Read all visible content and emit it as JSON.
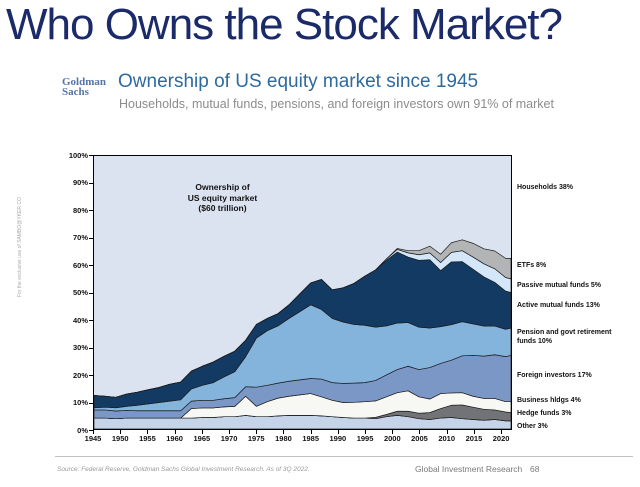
{
  "page": {
    "title": "Who Owns the Stock Market?",
    "watermark": "For the exclusive use of SAMBO@YKER.CO",
    "source_note": "Source: Federal Reserve, Goldman Sachs Global Investment Research. As of 3Q 2022.",
    "footer_right": "Global Investment Research",
    "page_number": "68",
    "title_color": "#1b2a68",
    "heading_color": "#2e6a9e"
  },
  "header": {
    "logo_line1": "Goldman",
    "logo_line2": "Sachs",
    "heading": "Ownership of US equity market since 1945",
    "subheading": "Households, mutual funds, pensions, and foreign investors own 91% of market"
  },
  "chart_data": {
    "type": "area",
    "stacked": true,
    "title": "Ownership of US equity market ($60 trillion)",
    "annotation_lines": [
      "Ownership of",
      "US equity market",
      "($60 trillion)"
    ],
    "plot_bg": "#dce3f0",
    "ylim": [
      0,
      100
    ],
    "x_range": [
      1945,
      2022
    ],
    "y_ticks": [
      "0%",
      "10%",
      "20%",
      "30%",
      "40%",
      "50%",
      "60%",
      "70%",
      "80%",
      "90%",
      "100%"
    ],
    "x_ticks": [
      1945,
      1950,
      1955,
      1960,
      1965,
      1970,
      1975,
      1980,
      1985,
      1990,
      1995,
      2000,
      2005,
      2010,
      2015,
      2020
    ],
    "x": [
      1945,
      1947,
      1949,
      1951,
      1953,
      1955,
      1957,
      1959,
      1961,
      1963,
      1965,
      1967,
      1969,
      1971,
      1973,
      1975,
      1977,
      1979,
      1981,
      1983,
      1985,
      1987,
      1989,
      1991,
      1993,
      1995,
      1997,
      1999,
      2001,
      2003,
      2005,
      2007,
      2009,
      2011,
      2013,
      2015,
      2017,
      2019,
      2021,
      2022
    ],
    "series": [
      {
        "name": "Other",
        "label": "Other 3%",
        "color": "#c6d4ea",
        "values": [
          4,
          4,
          3.8,
          4,
          4,
          4,
          4,
          4,
          4,
          4,
          4.2,
          4.2,
          4.5,
          4.5,
          5,
          4.5,
          4.5,
          4.8,
          5,
          5,
          5,
          4.8,
          4.5,
          4.2,
          4,
          4,
          3.8,
          4.5,
          5,
          4.5,
          3.8,
          3.5,
          4,
          4.2,
          3.8,
          3.5,
          3.2,
          3.5,
          3,
          3
        ]
      },
      {
        "name": "Hedge funds",
        "label": "Hedge funds 3%",
        "color": "#717376",
        "values": [
          0,
          0,
          0,
          0,
          0,
          0,
          0,
          0,
          0,
          0,
          0,
          0,
          0,
          0,
          0,
          0,
          0,
          0,
          0,
          0,
          0,
          0,
          0,
          0,
          0,
          0,
          0.5,
          0.8,
          1.5,
          2,
          2,
          2.5,
          3.5,
          4.5,
          5,
          4.5,
          4,
          3.5,
          3.2,
          3
        ]
      },
      {
        "name": "Business holdings",
        "label": "Business hldgs 4%",
        "color": "#f7f7f4",
        "values": [
          0,
          0,
          0,
          0,
          0,
          0,
          0,
          0,
          0,
          3.5,
          3.5,
          3.5,
          3.6,
          3.8,
          7,
          3.8,
          5.5,
          6.5,
          7,
          7.5,
          8,
          7,
          6,
          5.5,
          5.8,
          6,
          6,
          6.5,
          6.8,
          7.5,
          6,
          5,
          5.5,
          4.5,
          4.5,
          4,
          4,
          4.2,
          3.8,
          4
        ]
      },
      {
        "name": "Foreign investors",
        "label": "Foreign investors 17%",
        "color": "#7b97c5",
        "values": [
          3,
          3,
          2.8,
          2.8,
          2.7,
          2.7,
          2.7,
          2.7,
          2.7,
          2.7,
          2.8,
          2.8,
          3,
          3.2,
          3.5,
          7,
          6,
          5.5,
          5.5,
          5.5,
          5.5,
          6.5,
          6.5,
          7,
          7,
          7,
          7.5,
          8,
          8.5,
          9,
          10,
          11.5,
          11,
          12,
          13.5,
          15,
          15.5,
          16,
          16.5,
          17
        ]
      },
      {
        "name": "Pension and govt retirement funds",
        "label": "Pension and govt retirement funds 10%",
        "color": "#84b3dc",
        "values": [
          0.8,
          1,
          1.2,
          1.5,
          2,
          2.5,
          3,
          3.5,
          4,
          4.5,
          5.5,
          6.5,
          8,
          9.5,
          11,
          18,
          20,
          21,
          23,
          25,
          27,
          25.5,
          23.5,
          22.5,
          21.5,
          21,
          19.5,
          18,
          17,
          16,
          15.5,
          14.5,
          13.5,
          13,
          12.5,
          11.5,
          11,
          10.5,
          10,
          10
        ]
      },
      {
        "name": "Active mutual funds",
        "label": "Active mutual funds 13%",
        "color": "#123a62",
        "values": [
          4.5,
          4,
          3.8,
          4.5,
          4.8,
          5.2,
          5.5,
          6.2,
          6.5,
          6.5,
          7,
          7.5,
          7.5,
          7.5,
          6,
          5,
          4.5,
          4.5,
          5,
          6.5,
          8,
          11,
          10.5,
          12.5,
          15,
          18,
          21,
          24,
          26,
          24,
          24.5,
          25,
          20.5,
          23,
          22,
          20,
          18,
          16,
          14,
          13
        ]
      },
      {
        "name": "Passive mutual funds",
        "label": "Passive mutual funds 5%",
        "color": "#d3e7f8",
        "values": [
          0,
          0,
          0,
          0,
          0,
          0,
          0,
          0,
          0,
          0,
          0,
          0,
          0,
          0,
          0,
          0,
          0,
          0,
          0,
          0,
          0,
          0,
          0,
          0,
          0,
          0,
          0,
          0.5,
          1,
          1.5,
          2,
          2.5,
          3,
          3.5,
          4,
          4.5,
          4.8,
          5,
          5,
          5
        ]
      },
      {
        "name": "ETFs",
        "label": "ETFs 8%",
        "color": "#b2b4b6",
        "values": [
          0,
          0,
          0,
          0,
          0,
          0,
          0,
          0,
          0,
          0,
          0,
          0,
          0,
          0,
          0,
          0,
          0,
          0,
          0,
          0,
          0,
          0,
          0,
          0,
          0,
          0,
          0,
          0,
          0.3,
          0.8,
          1.5,
          2.5,
          3,
          3.5,
          4,
          5,
          5.5,
          6.5,
          7,
          7.5
        ]
      }
    ],
    "background_series": {
      "name": "Households",
      "label": "Households 38%",
      "color": "#dce3f0"
    },
    "legend_position": "right",
    "grid": false
  }
}
